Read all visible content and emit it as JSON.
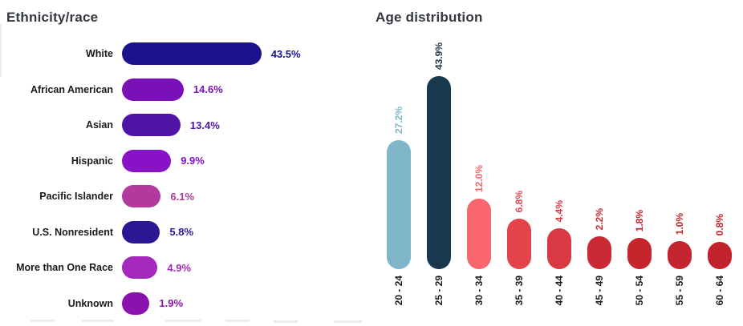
{
  "chart_data": [
    {
      "type": "bar",
      "orientation": "horizontal",
      "title": "Ethnicity/race",
      "categories": [
        "White",
        "African American",
        "Asian",
        "Hispanic",
        "Pacific Islander",
        "U.S. Nonresident",
        "More than One Race",
        "Unknown"
      ],
      "values": [
        43.5,
        14.6,
        13.4,
        9.9,
        6.1,
        5.8,
        4.9,
        1.9
      ],
      "value_labels": [
        "43.5%",
        "14.6%",
        "13.4%",
        "9.9%",
        "6.1%",
        "5.8%",
        "4.9%",
        "1.9%"
      ],
      "bar_colors": [
        "#1c128e",
        "#7a10b8",
        "#5013a8",
        "#8712c6",
        "#b23a9e",
        "#2d1694",
        "#a428bc",
        "#8c12ad"
      ],
      "xlabel": "",
      "ylabel": "",
      "xlim": [
        0,
        45
      ],
      "grid": false,
      "legend": false,
      "data_labels": "outside-end, colored to match bar"
    },
    {
      "type": "bar",
      "orientation": "vertical",
      "title": "Age distribution",
      "categories": [
        "20 - 24",
        "25 - 29",
        "30 - 34",
        "35 - 39",
        "40 - 44",
        "45 - 49",
        "50 - 54",
        "55 - 59",
        "60 - 64"
      ],
      "values": [
        27.2,
        43.9,
        12.0,
        6.8,
        4.4,
        2.2,
        1.8,
        1.0,
        0.8
      ],
      "value_labels": [
        "27.2%",
        "43.9%",
        "12.0%",
        "6.8%",
        "4.4%",
        "2.2%",
        "1.8%",
        "1.0%",
        "0.8%"
      ],
      "bar_colors": [
        "#7fb6ca",
        "#17384f",
        "#f9666e",
        "#e5434b",
        "#d93943",
        "#cb2a34",
        "#c7252e",
        "#c4242d",
        "#c2232c"
      ],
      "xlabel": "",
      "ylabel": "",
      "ylim": [
        0,
        45
      ],
      "grid": false,
      "legend": false,
      "data_labels": "above bar, rotated 90deg, colored to match bar",
      "tick_label_rotation": "vertical (reads bottom to top)"
    }
  ],
  "styles": {
    "background": "#ffffff",
    "title_color": "#333840",
    "category_label_color": "#1a1a1a",
    "axis_label_color": "#1a1a1a"
  }
}
